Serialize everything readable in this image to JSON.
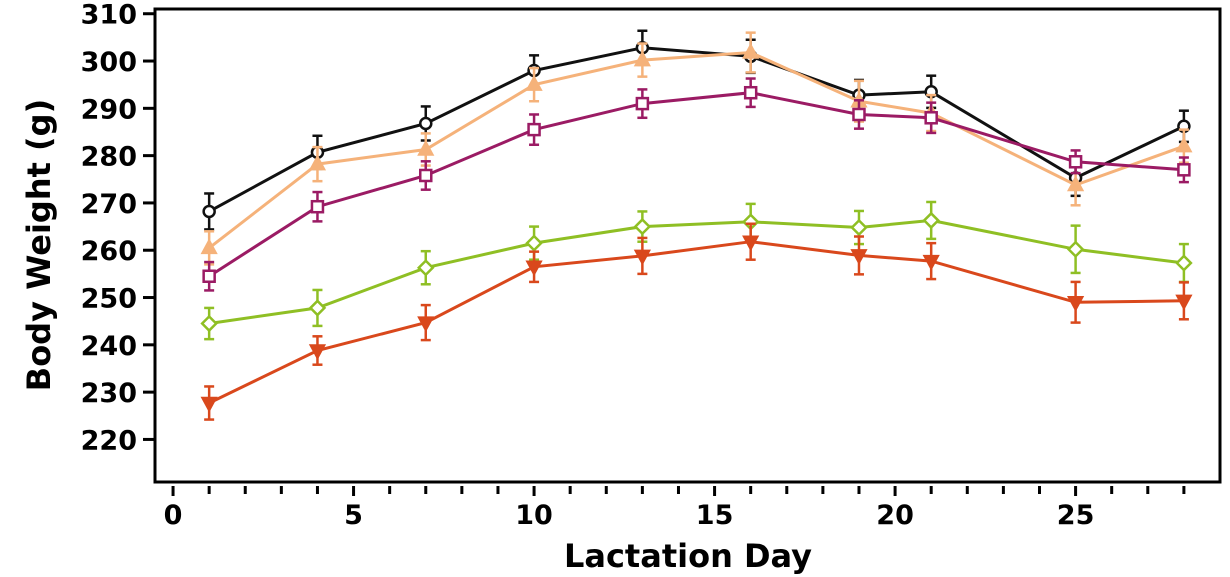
{
  "chart_data": {
    "type": "line",
    "title": "",
    "xlabel": "Lactation Day",
    "ylabel": "Body Weight (g)",
    "xlim": [
      -0.5,
      29
    ],
    "ylim": [
      211,
      311
    ],
    "x_ticks": [
      0,
      5,
      10,
      15,
      20,
      25
    ],
    "y_ticks": [
      220,
      230,
      240,
      250,
      260,
      270,
      280,
      290,
      300,
      310
    ],
    "grid": false,
    "legend": "none",
    "x": [
      1,
      4,
      7,
      10,
      13,
      16,
      19,
      21,
      25,
      28
    ],
    "series": [
      {
        "marker": "circle",
        "color": "#111111",
        "values": [
          268.2,
          280.7,
          286.8,
          298.0,
          302.8,
          301.0,
          292.8,
          293.5,
          275.3,
          286.2
        ],
        "errors": [
          3.8,
          3.5,
          3.6,
          3.2,
          3.6,
          3.5,
          3.2,
          3.4,
          3.8,
          3.3
        ]
      },
      {
        "marker": "triangle-up",
        "color": "#f5b27a",
        "values": [
          260.5,
          278.2,
          281.3,
          295.0,
          300.2,
          301.8,
          291.5,
          289.0,
          273.8,
          282.0
        ],
        "errors": [
          3.5,
          3.6,
          3.4,
          3.5,
          3.5,
          4.2,
          4.3,
          3.8,
          4.3,
          3.5
        ]
      },
      {
        "marker": "square",
        "color": "#9b1b64",
        "values": [
          254.5,
          269.2,
          275.8,
          285.5,
          291.0,
          293.3,
          288.7,
          288.0,
          278.7,
          277.0
        ],
        "errors": [
          3.0,
          3.1,
          3.0,
          3.2,
          3.0,
          3.0,
          3.0,
          3.2,
          2.4,
          2.6
        ]
      },
      {
        "marker": "diamond",
        "color": "#8fbf24",
        "values": [
          244.5,
          247.8,
          256.3,
          261.5,
          265.0,
          266.0,
          264.8,
          266.3,
          260.2,
          257.3
        ],
        "errors": [
          3.3,
          3.8,
          3.5,
          3.5,
          3.2,
          3.8,
          3.5,
          3.9,
          5.0,
          4.0
        ]
      },
      {
        "marker": "triangle-down",
        "color": "#d9481c",
        "values": [
          227.7,
          238.8,
          244.7,
          256.5,
          258.8,
          261.8,
          258.9,
          257.7,
          249.0,
          249.3
        ],
        "errors": [
          3.5,
          3.0,
          3.7,
          3.2,
          3.8,
          3.8,
          4.0,
          3.8,
          4.3,
          3.9
        ]
      }
    ]
  }
}
